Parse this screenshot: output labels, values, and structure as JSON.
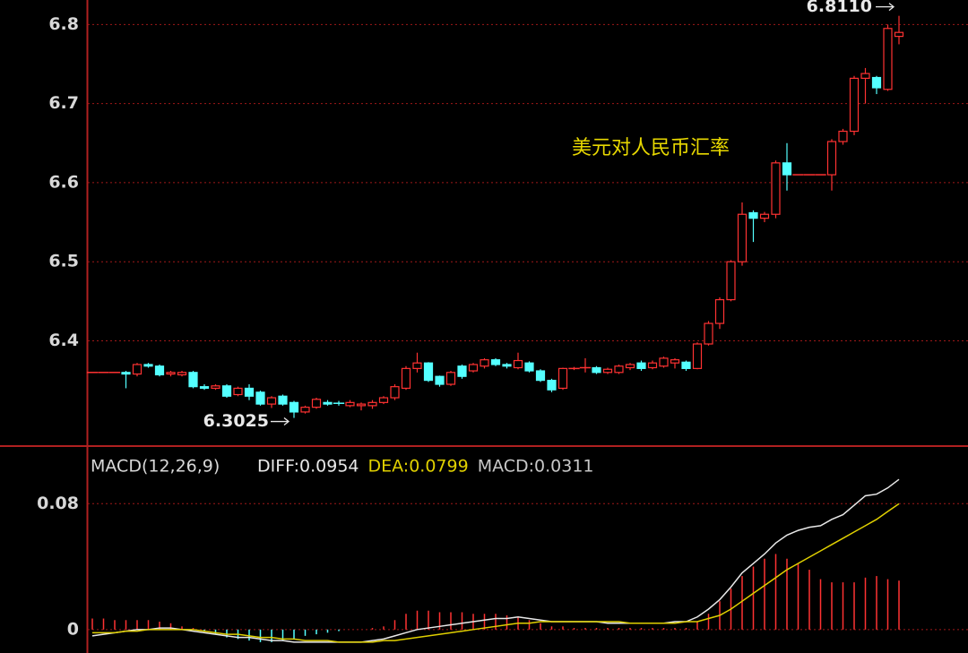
{
  "chart_data": [
    {
      "type": "candlestick",
      "title": "美元对人民币汇率",
      "max_label": "6.8110",
      "min_label": "6.3025",
      "up_color": "#ff3232",
      "down_color": "#54ffff",
      "open": [
        6.36,
        6.36,
        6.36,
        6.36,
        6.358,
        6.37,
        6.368,
        6.358,
        6.357,
        6.36,
        6.342,
        6.34,
        6.343,
        6.332,
        6.34,
        6.335,
        6.32,
        6.33,
        6.322,
        6.31,
        6.316,
        6.322,
        6.321,
        6.318,
        6.318,
        6.318,
        6.322,
        6.328,
        6.34,
        6.365,
        6.372,
        6.355,
        6.345,
        6.368,
        6.362,
        6.368,
        6.376,
        6.37,
        6.366,
        6.372,
        6.362,
        6.35,
        6.34,
        6.365,
        6.365,
        6.366,
        6.36,
        6.36,
        6.366,
        6.372,
        6.366,
        6.368,
        6.372,
        6.373,
        6.365,
        6.396,
        6.422,
        6.452,
        6.5,
        6.562,
        6.555,
        6.56,
        6.625,
        6.61,
        6.61,
        6.61,
        6.61,
        6.652,
        6.665,
        6.732,
        6.733,
        6.718,
        6.785
      ],
      "high": [
        6.36,
        6.36,
        6.36,
        6.362,
        6.372,
        6.372,
        6.37,
        6.362,
        6.362,
        6.362,
        6.345,
        6.345,
        6.345,
        6.342,
        6.345,
        6.337,
        6.33,
        6.332,
        6.324,
        6.318,
        6.328,
        6.325,
        6.324,
        6.325,
        6.322,
        6.325,
        6.33,
        6.345,
        6.368,
        6.385,
        6.373,
        6.356,
        6.362,
        6.37,
        6.372,
        6.378,
        6.378,
        6.372,
        6.385,
        6.374,
        6.364,
        6.352,
        6.366,
        6.367,
        6.378,
        6.368,
        6.366,
        6.37,
        6.372,
        6.375,
        6.375,
        6.38,
        6.378,
        6.375,
        6.398,
        6.425,
        6.455,
        6.502,
        6.575,
        6.565,
        6.563,
        6.628,
        6.65,
        6.61,
        6.61,
        6.61,
        6.655,
        6.668,
        6.735,
        6.745,
        6.735,
        6.8,
        6.811
      ],
      "low": [
        6.36,
        6.36,
        6.36,
        6.34,
        6.355,
        6.366,
        6.355,
        6.355,
        6.355,
        6.34,
        6.338,
        6.338,
        6.328,
        6.33,
        6.325,
        6.318,
        6.315,
        6.318,
        6.3025,
        6.308,
        6.314,
        6.318,
        6.318,
        6.316,
        6.312,
        6.314,
        6.32,
        6.325,
        6.338,
        6.36,
        6.348,
        6.342,
        6.343,
        6.352,
        6.36,
        6.365,
        6.368,
        6.365,
        6.364,
        6.36,
        6.348,
        6.335,
        6.338,
        6.363,
        6.36,
        6.358,
        6.358,
        6.358,
        6.363,
        6.362,
        6.364,
        6.366,
        6.365,
        6.362,
        6.364,
        6.394,
        6.415,
        6.45,
        6.495,
        6.525,
        6.55,
        6.555,
        6.59,
        6.61,
        6.61,
        6.61,
        6.59,
        6.648,
        6.66,
        6.7,
        6.712,
        6.716,
        6.775
      ],
      "close": [
        6.36,
        6.36,
        6.36,
        6.358,
        6.37,
        6.368,
        6.357,
        6.36,
        6.36,
        6.342,
        6.34,
        6.343,
        6.33,
        6.34,
        6.33,
        6.32,
        6.328,
        6.32,
        6.31,
        6.316,
        6.326,
        6.32,
        6.32,
        6.322,
        6.32,
        6.322,
        6.328,
        6.342,
        6.365,
        6.372,
        6.35,
        6.345,
        6.36,
        6.355,
        6.37,
        6.376,
        6.37,
        6.368,
        6.375,
        6.362,
        6.35,
        6.338,
        6.365,
        6.365,
        6.366,
        6.36,
        6.364,
        6.368,
        6.37,
        6.365,
        6.372,
        6.378,
        6.376,
        6.365,
        6.396,
        6.422,
        6.452,
        6.5,
        6.56,
        6.555,
        6.56,
        6.625,
        6.61,
        6.61,
        6.61,
        6.61,
        6.652,
        6.665,
        6.732,
        6.738,
        6.72,
        6.795,
        6.79
      ],
      "ylim": [
        6.268,
        6.831
      ],
      "yticks": [
        6.4,
        6.5,
        6.6,
        6.7,
        6.8
      ],
      "grid": true
    },
    {
      "type": "macd",
      "title": "MACD(12,26,9)",
      "series": [
        {
          "name": "DIFF:0.0954",
          "color": "#e8e8e8",
          "kind": "line",
          "values": [
            -0.004,
            -0.003,
            -0.002,
            -0.001,
            0,
            0,
            0.001,
            0.001,
            0,
            -0.001,
            -0.002,
            -0.003,
            -0.004,
            -0.005,
            -0.005,
            -0.006,
            -0.007,
            -0.007,
            -0.008,
            -0.008,
            -0.008,
            -0.008,
            -0.008,
            -0.008,
            -0.008,
            -0.007,
            -0.006,
            -0.004,
            -0.002,
            0,
            0.001,
            0.002,
            0.003,
            0.004,
            0.005,
            0.006,
            0.007,
            0.007,
            0.008,
            0.007,
            0.006,
            0.005,
            0.005,
            0.005,
            0.005,
            0.005,
            0.004,
            0.004,
            0.004,
            0.004,
            0.004,
            0.004,
            0.005,
            0.005,
            0.008,
            0.013,
            0.019,
            0.027,
            0.036,
            0.042,
            0.048,
            0.055,
            0.06,
            0.063,
            0.065,
            0.066,
            0.07,
            0.073,
            0.079,
            0.085,
            0.086,
            0.09,
            0.0954
          ]
        },
        {
          "name": "DEA:0.0799",
          "color": "#e0d000",
          "kind": "line",
          "values": [
            -0.002,
            -0.002,
            -0.002,
            -0.001,
            -0.001,
            0,
            0,
            0,
            0,
            0,
            -0.001,
            -0.002,
            -0.003,
            -0.003,
            -0.004,
            -0.005,
            -0.005,
            -0.006,
            -0.006,
            -0.007,
            -0.007,
            -0.007,
            -0.008,
            -0.008,
            -0.008,
            -0.008,
            -0.007,
            -0.007,
            -0.006,
            -0.005,
            -0.004,
            -0.003,
            -0.002,
            -0.001,
            0,
            0.001,
            0.002,
            0.003,
            0.004,
            0.004,
            0.005,
            0.005,
            0.005,
            0.005,
            0.005,
            0.005,
            0.005,
            0.005,
            0.004,
            0.004,
            0.004,
            0.004,
            0.004,
            0.005,
            0.005,
            0.007,
            0.009,
            0.013,
            0.018,
            0.023,
            0.028,
            0.033,
            0.038,
            0.042,
            0.046,
            0.05,
            0.054,
            0.058,
            0.062,
            0.066,
            0.07,
            0.075,
            0.0799
          ]
        },
        {
          "name": "MACD:0.0311",
          "color": "#c8c8c8",
          "kind": "bar",
          "up_color": "#ff3232",
          "down_color": "#54ffff",
          "values": [
            0.007,
            0.007,
            0.006,
            0.006,
            0.006,
            0.006,
            0.005,
            0.004,
            0.002,
            0.001,
            -0.001,
            -0.003,
            -0.005,
            -0.006,
            -0.007,
            -0.008,
            -0.008,
            -0.007,
            -0.006,
            -0.004,
            -0.003,
            -0.002,
            -0.001,
            0,
            0,
            0.001,
            0.002,
            0.006,
            0.01,
            0.012,
            0.012,
            0.011,
            0.011,
            0.011,
            0.01,
            0.01,
            0.01,
            0.009,
            0.008,
            0.006,
            0.004,
            0.002,
            0.002,
            0.001,
            0.001,
            0.001,
            0.001,
            0.001,
            0.001,
            0.001,
            0.001,
            0.001,
            0.001,
            0.001,
            0.005,
            0.01,
            0.018,
            0.026,
            0.034,
            0.04,
            0.045,
            0.048,
            0.045,
            0.042,
            0.038,
            0.032,
            0.03,
            0.03,
            0.03,
            0.033,
            0.034,
            0.032,
            0.0311
          ]
        }
      ],
      "ylim": [
        -0.0149,
        0.116
      ],
      "yticks": [
        0,
        0.08
      ],
      "grid": true
    }
  ]
}
